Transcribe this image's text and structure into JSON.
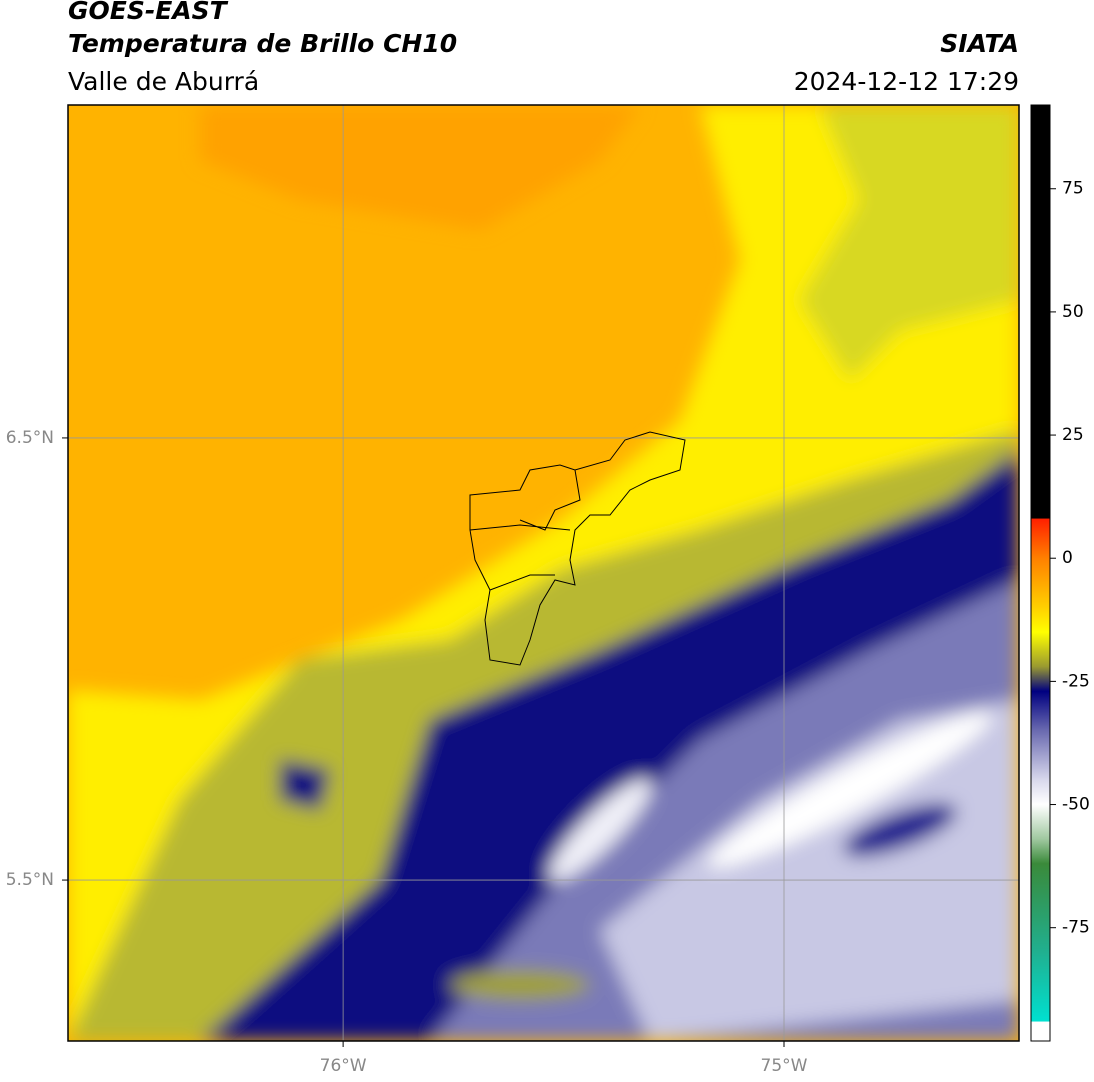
{
  "header": {
    "title": "GOES-EAST",
    "subtitle": "Temperatura de Brillo CH10",
    "region": "Valle de Aburrá",
    "source": "SIATA",
    "datetime": "2024-12-12 17:29"
  },
  "map": {
    "xlim": [
      -76.624,
      -74.467
    ],
    "ylim": [
      5.136,
      7.253
    ],
    "xticks": [
      {
        "value": -76,
        "label": "76°W"
      },
      {
        "value": -75,
        "label": "75°W"
      }
    ],
    "yticks": [
      {
        "value": 5.5,
        "label": "5.5°N"
      },
      {
        "value": 6.5,
        "label": "6.5°N"
      }
    ],
    "grid": true
  },
  "colorbar": {
    "lim": [
      -98,
      92
    ],
    "ticks": [
      -75,
      -50,
      -25,
      0,
      25,
      50,
      75
    ],
    "stops": [
      {
        "value": 92,
        "color": "#000000"
      },
      {
        "value": 8.1,
        "color": "#000000"
      },
      {
        "value": 8,
        "color": "#ff2000"
      },
      {
        "value": 0,
        "color": "#ff8000"
      },
      {
        "value": -10,
        "color": "#ffd000"
      },
      {
        "value": -15,
        "color": "#ffff00"
      },
      {
        "value": -22,
        "color": "#9a9a30"
      },
      {
        "value": -27,
        "color": "#000080"
      },
      {
        "value": -35,
        "color": "#6a6ab0"
      },
      {
        "value": -45,
        "color": "#d8d8ec"
      },
      {
        "value": -50,
        "color": "#ffffff"
      },
      {
        "value": -57,
        "color": "#a0c8a0"
      },
      {
        "value": -62,
        "color": "#3a8a3a"
      },
      {
        "value": -80,
        "color": "#20b090"
      },
      {
        "value": -94,
        "color": "#00e0d0"
      },
      {
        "value": -94.1,
        "color": "#ffffff"
      },
      {
        "value": -98,
        "color": "#ffffff"
      }
    ]
  }
}
